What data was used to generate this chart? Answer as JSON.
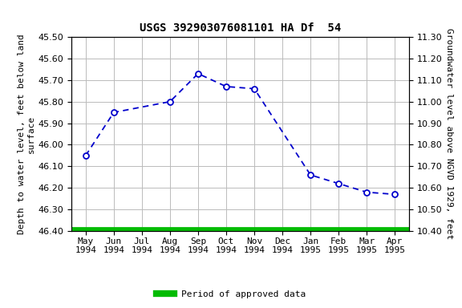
{
  "title": "USGS 392903076081101 HA Df  54",
  "ylabel_left": "Depth to water level, feet below land\nsurface",
  "ylabel_right": "Groundwater level above NGVD 1929, feet",
  "xlabel_months": [
    "May",
    "Jun",
    "Jul",
    "Aug",
    "Sep",
    "Oct",
    "Nov",
    "Dec",
    "Jan",
    "Feb",
    "Mar",
    "Apr"
  ],
  "xlabel_years": [
    "1994",
    "1994",
    "1994",
    "1994",
    "1994",
    "1994",
    "1994",
    "1994",
    "1995",
    "1995",
    "1995",
    "1995"
  ],
  "x_indices": [
    0,
    1,
    2,
    3,
    4,
    5,
    6,
    7,
    8,
    9,
    10,
    11
  ],
  "data_x": [
    0,
    1,
    3,
    4,
    5,
    6,
    8,
    9,
    10,
    11
  ],
  "data_y_left": [
    46.05,
    45.85,
    45.8,
    45.67,
    45.73,
    45.74,
    46.14,
    46.18,
    46.22,
    46.23
  ],
  "ylim_left": [
    46.4,
    45.5
  ],
  "ylim_right": [
    10.4,
    11.3
  ],
  "yticks_left": [
    45.5,
    45.6,
    45.7,
    45.8,
    45.9,
    46.0,
    46.1,
    46.2,
    46.3,
    46.4
  ],
  "yticks_right": [
    11.3,
    11.2,
    11.1,
    11.0,
    10.9,
    10.8,
    10.7,
    10.6,
    10.5,
    10.4
  ],
  "line_color": "#0000CC",
  "marker_color": "#0000CC",
  "grid_color": "#BBBBBB",
  "bg_color": "#FFFFFF",
  "legend_line_color": "#00BB00",
  "legend_label": "Period of approved data",
  "title_fontsize": 10,
  "axis_label_fontsize": 8,
  "tick_fontsize": 8,
  "fig_width": 5.76,
  "fig_height": 3.84,
  "dpi": 100
}
